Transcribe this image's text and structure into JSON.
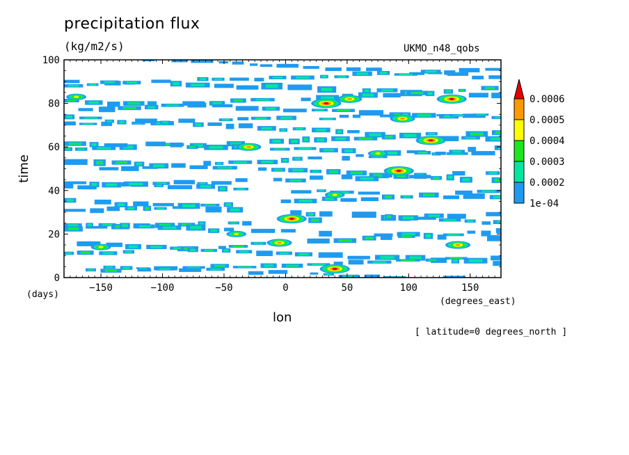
{
  "header": {
    "title": "precipitation flux",
    "units": "(kg/m2/s)",
    "dataset": "UKMO_n48_qobs"
  },
  "footer": {
    "note": "[ latitude=0 degrees_north ]"
  },
  "chart_data": {
    "type": "heatmap",
    "title": "precipitation flux",
    "units": "(kg/m2/s)",
    "xlabel": "lon",
    "xunits": "(degrees_east)",
    "ylabel": "time",
    "yunits": "(days)",
    "xlim": [
      -180,
      175
    ],
    "ylim": [
      0,
      100
    ],
    "xticks": [
      -150,
      -100,
      -50,
      0,
      50,
      100,
      150
    ],
    "yticks": [
      0,
      20,
      40,
      60,
      80,
      100
    ],
    "xtick_labels": [
      "−150",
      "−100",
      "−50",
      "0",
      "50",
      "100",
      "150"
    ],
    "ytick_labels": [
      "0",
      "20",
      "40",
      "60",
      "80",
      "100"
    ],
    "colorbar": {
      "levels": [
        0.0001,
        0.0002,
        0.0003,
        0.0004,
        0.0005,
        0.0006
      ],
      "labels": [
        "1e-04",
        "0.0002",
        "0.0003",
        "0.0004",
        "0.0005",
        "0.0006"
      ],
      "colors": [
        "#1e9bf0",
        "#00e6a0",
        "#1ee61e",
        "#ffff00",
        "#ff9900",
        "#e60000"
      ],
      "extend": "max"
    },
    "bands": [
      {
        "t": 97,
        "slope": -0.03,
        "thick": 1.6,
        "level": 1
      },
      {
        "t": 92,
        "slope": 0.02,
        "thick": 1.8,
        "level": 2
      },
      {
        "t": 87,
        "slope": -0.018,
        "thick": 2.4,
        "level": 2
      },
      {
        "t": 82,
        "slope": 0.028,
        "thick": 2.2,
        "level": 3
      },
      {
        "t": 77,
        "slope": -0.022,
        "thick": 2.0,
        "level": 3
      },
      {
        "t": 73,
        "slope": 0.015,
        "thick": 1.6,
        "level": 2
      },
      {
        "t": 68,
        "slope": -0.03,
        "thick": 2.0,
        "level": 2
      },
      {
        "t": 63,
        "slope": 0.024,
        "thick": 2.2,
        "level": 3
      },
      {
        "t": 59,
        "slope": -0.016,
        "thick": 2.0,
        "level": 3
      },
      {
        "t": 54,
        "slope": 0.03,
        "thick": 1.8,
        "level": 2
      },
      {
        "t": 49,
        "slope": -0.025,
        "thick": 2.4,
        "level": 3
      },
      {
        "t": 45,
        "slope": 0.018,
        "thick": 1.8,
        "level": 2
      },
      {
        "t": 40,
        "slope": -0.02,
        "thick": 2.0,
        "level": 2
      },
      {
        "t": 35,
        "slope": 0.026,
        "thick": 2.0,
        "level": 3
      },
      {
        "t": 30,
        "slope": -0.028,
        "thick": 2.2,
        "level": 2
      },
      {
        "t": 26,
        "slope": 0.02,
        "thick": 2.0,
        "level": 3
      },
      {
        "t": 21,
        "slope": -0.018,
        "thick": 2.2,
        "level": 2
      },
      {
        "t": 16,
        "slope": 0.03,
        "thick": 2.0,
        "level": 3
      },
      {
        "t": 11,
        "slope": -0.024,
        "thick": 2.0,
        "level": 2
      },
      {
        "t": 6,
        "slope": 0.018,
        "thick": 1.8,
        "level": 3
      },
      {
        "t": 2,
        "slope": -0.02,
        "thick": 1.4,
        "level": 2
      }
    ],
    "hotspots": [
      {
        "lon": 33,
        "t": 80,
        "level": 5
      },
      {
        "lon": 52,
        "t": 82,
        "level": 4
      },
      {
        "lon": 135,
        "t": 82,
        "level": 5
      },
      {
        "lon": 95,
        "t": 73,
        "level": 4
      },
      {
        "lon": 118,
        "t": 63,
        "level": 5
      },
      {
        "lon": -30,
        "t": 60,
        "level": 4
      },
      {
        "lon": 92,
        "t": 49,
        "level": 5
      },
      {
        "lon": 5,
        "t": 27,
        "level": 5
      },
      {
        "lon": -5,
        "t": 16,
        "level": 4
      },
      {
        "lon": 140,
        "t": 15,
        "level": 4
      },
      {
        "lon": 40,
        "t": 4,
        "level": 5
      },
      {
        "lon": -40,
        "t": 20,
        "level": 3
      },
      {
        "lon": -150,
        "t": 14,
        "level": 3
      },
      {
        "lon": 75,
        "t": 57,
        "level": 3
      },
      {
        "lon": 40,
        "t": 38,
        "level": 3
      },
      {
        "lon": -170,
        "t": 83,
        "level": 3
      }
    ]
  }
}
